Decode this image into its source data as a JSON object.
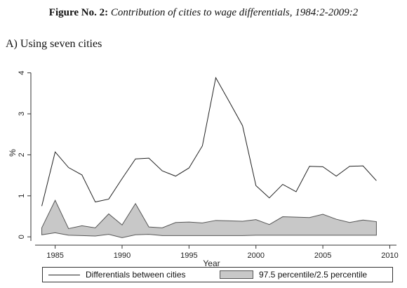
{
  "figure": {
    "label": "Figure No. 2:",
    "caption": "Contribution of cities to wage differentials, 1984:2-2009:2"
  },
  "panel": {
    "title": "A) Using seven cities"
  },
  "chart_data": {
    "type": "line",
    "xlabel": "Year",
    "ylabel": "%",
    "xlim": [
      1983.5,
      2010.5
    ],
    "ylim": [
      -0.1,
      4.2
    ],
    "xticks": [
      1985,
      1990,
      1995,
      2000,
      2005,
      2010
    ],
    "yticks": [
      0,
      1,
      2,
      3,
      4
    ],
    "grid": false,
    "legend_position": "bottom",
    "series": [
      {
        "name": "Differentials between cities",
        "kind": "line",
        "color": "#222222",
        "x": [
          1984,
          1985,
          1986,
          1987,
          1988,
          1989,
          1990,
          1991,
          1992,
          1993,
          1994,
          1995,
          1996,
          1997,
          1998,
          1999,
          2000,
          2001,
          2002,
          2003,
          2004,
          2005,
          2006,
          2007,
          2008,
          2009
        ],
        "y": [
          0.75,
          2.07,
          1.69,
          1.51,
          0.85,
          0.92,
          1.42,
          1.9,
          1.92,
          1.61,
          1.48,
          1.68,
          2.22,
          3.88,
          3.3,
          2.71,
          1.25,
          0.95,
          1.28,
          1.1,
          1.72,
          1.71,
          1.48,
          1.72,
          1.73,
          1.37
        ]
      },
      {
        "name": "97.5 percentile/2.5 percentile",
        "kind": "band",
        "color": "#c8c8c8",
        "x": [
          1984,
          1985,
          1986,
          1987,
          1988,
          1989,
          1990,
          1991,
          1992,
          1993,
          1994,
          1995,
          1996,
          1997,
          1998,
          1999,
          2000,
          2001,
          2002,
          2003,
          2004,
          2005,
          2006,
          2007,
          2008,
          2009
        ],
        "upper": [
          0.22,
          0.89,
          0.2,
          0.27,
          0.22,
          0.56,
          0.29,
          0.81,
          0.24,
          0.22,
          0.35,
          0.36,
          0.34,
          0.4,
          0.39,
          0.38,
          0.42,
          0.3,
          0.49,
          0.48,
          0.47,
          0.55,
          0.43,
          0.35,
          0.41,
          0.37
        ],
        "lower": [
          0.05,
          0.1,
          0.04,
          0.03,
          0.02,
          0.06,
          -0.02,
          0.05,
          0.06,
          0.03,
          0.03,
          0.03,
          0.03,
          0.03,
          0.03,
          0.03,
          0.04,
          0.04,
          0.04,
          0.04,
          0.04,
          0.04,
          0.04,
          0.04,
          0.04,
          0.04
        ]
      }
    ]
  }
}
